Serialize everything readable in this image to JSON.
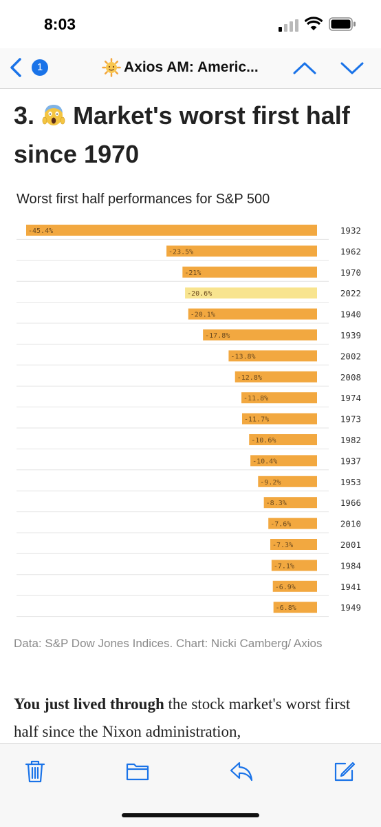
{
  "status": {
    "time": "8:03"
  },
  "nav": {
    "badge_count": "1",
    "title": "Axios AM: Americ..."
  },
  "article": {
    "headline_prefix": "3.",
    "headline_text": "Market's worst first half since 1970",
    "chart_title": "Worst first half performances for S&P 500",
    "caption": "Data: S&P Dow Jones Indices. Chart: Nicki Camberg/ Axios",
    "body_bold": "You just lived through",
    "body_rest": " the stock market's worst first half since the Nixon administration,"
  },
  "chart_data": {
    "type": "bar",
    "orientation": "horizontal",
    "title": "Worst first half performances for S&P 500",
    "categories": [
      "1932",
      "1962",
      "1970",
      "2022",
      "1940",
      "1939",
      "2002",
      "2008",
      "1974",
      "1973",
      "1982",
      "1937",
      "1953",
      "1966",
      "2010",
      "2001",
      "1984",
      "1941",
      "1949"
    ],
    "values": [
      -45.4,
      -23.5,
      -21,
      -20.6,
      -20.1,
      -17.8,
      -13.8,
      -12.8,
      -11.8,
      -11.7,
      -10.6,
      -10.4,
      -9.2,
      -8.3,
      -7.6,
      -7.3,
      -7.1,
      -6.9,
      -6.8
    ],
    "labels": [
      "-45.4%",
      "-23.5%",
      "-21%",
      "-20.6%",
      "-20.1%",
      "-17.8%",
      "-13.8%",
      "-12.8%",
      "-11.8%",
      "-11.7%",
      "-10.6%",
      "-10.4%",
      "-9.2%",
      "-8.3%",
      "-7.6%",
      "-7.3%",
      "-7.1%",
      "-6.9%",
      "-6.8%"
    ],
    "highlight": "2022",
    "colors": {
      "bar": "#f2a840",
      "highlight": "#f8e48f",
      "label": "#6b4a1f",
      "grid": "#e4e4e4"
    },
    "xlim": [
      -45.4,
      0
    ]
  },
  "colors": {
    "accent": "#1a73e8",
    "text": "#222222",
    "muted": "#8a8a8a"
  },
  "toolbar": {
    "icons": [
      "trash-icon",
      "folder-icon",
      "reply-icon",
      "compose-icon"
    ]
  }
}
